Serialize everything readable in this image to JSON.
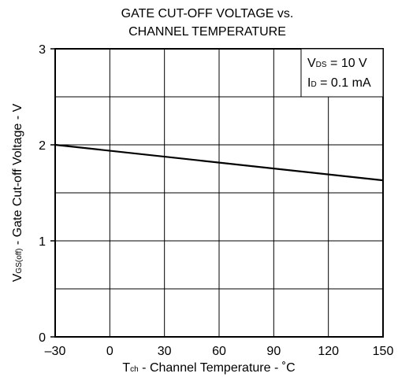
{
  "chart_data": {
    "type": "line",
    "title_lines": [
      "GATE CUT-OFF VOLTAGE vs.",
      "CHANNEL TEMPERATURE"
    ],
    "xlabel": {
      "main": "T",
      "sub": "ch",
      "rest": " - Channel Temperature - ˚C"
    },
    "ylabel": {
      "main": "V",
      "sub": "GS(off)",
      "rest": " - Gate Cut-off Voltage - V"
    },
    "xlim": [
      -30,
      150
    ],
    "ylim": [
      0,
      3
    ],
    "x_ticks": [
      -30,
      0,
      30,
      60,
      90,
      120,
      150
    ],
    "x_tick_labels": [
      "–30",
      "0",
      "30",
      "60",
      "90",
      "120",
      "150"
    ],
    "y_ticks": [
      0,
      1,
      2,
      3
    ],
    "y_tick_labels": [
      "0",
      "1",
      "2",
      "3"
    ],
    "y_minor_grid": [
      0.5,
      1.5,
      2.5
    ],
    "grid": true,
    "conditions": [
      {
        "main": "V",
        "sub": "DS",
        "rest": " = 10 V"
      },
      {
        "main": "I",
        "sub": "D",
        "rest": " = 0.1 mA"
      }
    ],
    "legend_position": "top-right",
    "series": [
      {
        "x": [
          -30,
          150
        ],
        "y": [
          2.0,
          1.63
        ]
      }
    ],
    "line_color": "#000000"
  }
}
